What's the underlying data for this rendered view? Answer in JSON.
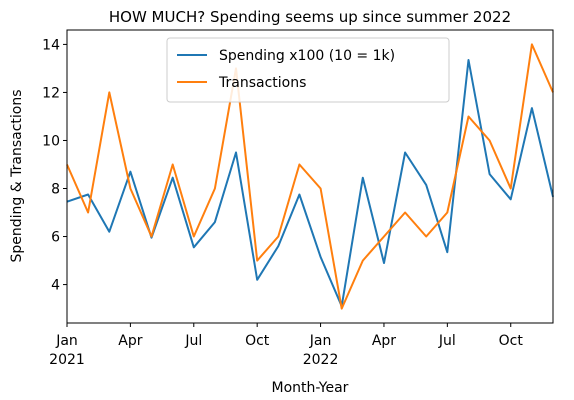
{
  "chart_data": {
    "type": "line",
    "title": "HOW MUCH? Spending seems up since summer 2022",
    "xlabel": "Month-Year",
    "ylabel": "Spending & Transactions",
    "x": [
      "2021-01",
      "2021-02",
      "2021-03",
      "2021-04",
      "2021-05",
      "2021-06",
      "2021-07",
      "2021-08",
      "2021-09",
      "2021-10",
      "2021-11",
      "2021-12",
      "2022-01",
      "2022-02",
      "2022-03",
      "2022-04",
      "2022-05",
      "2022-06",
      "2022-07",
      "2022-08",
      "2022-09",
      "2022-10",
      "2022-11",
      "2022-12"
    ],
    "ylim": [
      2.4,
      14.6
    ],
    "yticks": [
      4,
      6,
      8,
      10,
      12,
      14
    ],
    "xticks": [
      {
        "x": "2021-01",
        "label": "Jan",
        "sublabel": "2021"
      },
      {
        "x": "2021-04",
        "label": "Apr",
        "sublabel": ""
      },
      {
        "x": "2021-07",
        "label": "Jul",
        "sublabel": ""
      },
      {
        "x": "2021-10",
        "label": "Oct",
        "sublabel": ""
      },
      {
        "x": "2022-01",
        "label": "Jan",
        "sublabel": "2022"
      },
      {
        "x": "2022-04",
        "label": "Apr",
        "sublabel": ""
      },
      {
        "x": "2022-07",
        "label": "Jul",
        "sublabel": ""
      },
      {
        "x": "2022-10",
        "label": "Oct",
        "sublabel": ""
      }
    ],
    "legend_position": "top-center",
    "grid": false,
    "series": [
      {
        "name": "Spending x100 (10 = 1k)",
        "color": "#1f77b4",
        "values": [
          7.45,
          7.75,
          6.2,
          8.7,
          5.95,
          8.45,
          5.55,
          6.6,
          9.5,
          4.2,
          5.6,
          7.75,
          5.15,
          3.1,
          8.45,
          4.9,
          9.5,
          8.15,
          5.35,
          13.35,
          8.6,
          7.55,
          11.35,
          7.65
        ]
      },
      {
        "name": "Transactions",
        "color": "#ff7f0e",
        "values": [
          9,
          7,
          12,
          8,
          6,
          9,
          6,
          8,
          13,
          5,
          6,
          9,
          8,
          3,
          5,
          6,
          7,
          6,
          7,
          11,
          10,
          8,
          14,
          12
        ]
      }
    ]
  }
}
